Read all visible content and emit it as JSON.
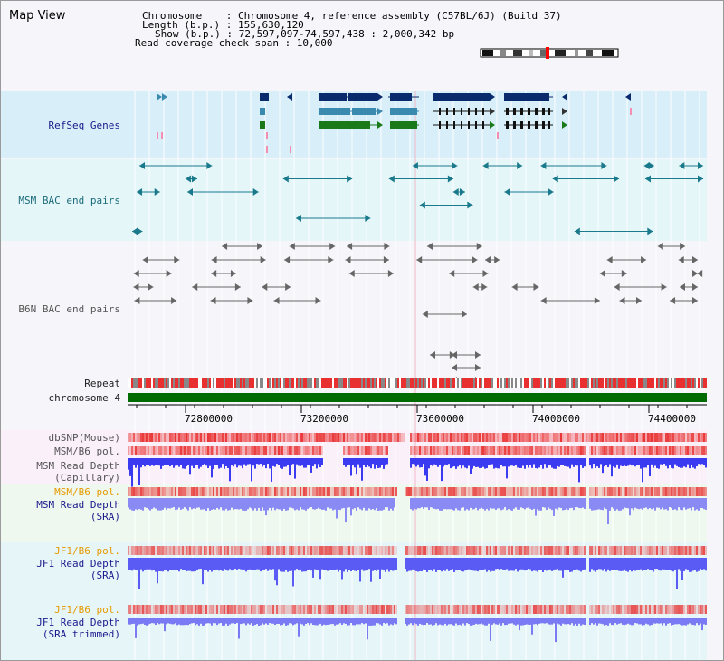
{
  "title": "Map View",
  "info": {
    "line1": "Chromosome    : Chromosome 4, reference assembly (C57BL/6J) (Build 37)",
    "line2": "Length (b.p.) : 155,630,120",
    "line3": "Show (b.p.) : 72,597,097-74,597,438 : 2,000,342 bp",
    "line4": "Read coverage check span : 10,000"
  },
  "tracks": {
    "refseq": "RefSeq Genes",
    "msm_bac": "MSM BAC end pairs",
    "b6n_bac": "B6N BAC end pairs",
    "repeat": "Repeat",
    "chromosome": "chromosome 4",
    "dbsnp": "dbSNP(Mouse)",
    "msm_b6_pol": "MSM/B6 pol.",
    "msm_depth_cap_1": "MSM Read Depth",
    "msm_depth_cap_2": "(Capillary)",
    "msm_b6_pol_sra": "MSM/B6 pol.",
    "msm_depth_sra_1": "MSM Read Depth",
    "msm_depth_sra_2": "(SRA)",
    "jf1_pol_1": "JF1/B6 pol.",
    "jf1_depth_1": "JF1 Read Depth",
    "jf1_depth_1b": "(SRA)",
    "jf1_pol_2": "JF1/B6 pol.",
    "jf1_depth_2": "JF1 Read Depth",
    "jf1_depth_2b": "(SRA trimmed)"
  },
  "axis": {
    "ticks": [
      "72800000",
      "73200000",
      "73600000",
      "74000000",
      "74400000"
    ]
  },
  "colors": {
    "refseq_band": "#d8eef8",
    "bac_band": "#e4f6f8",
    "chrom_green": "#006b00",
    "gene_navy": "#0a2a6e",
    "gene_teal": "#3a8ab0",
    "gene_green": "#1a7a1a",
    "depth_blue": "#3333ff",
    "pol_red": "#e83030"
  }
}
